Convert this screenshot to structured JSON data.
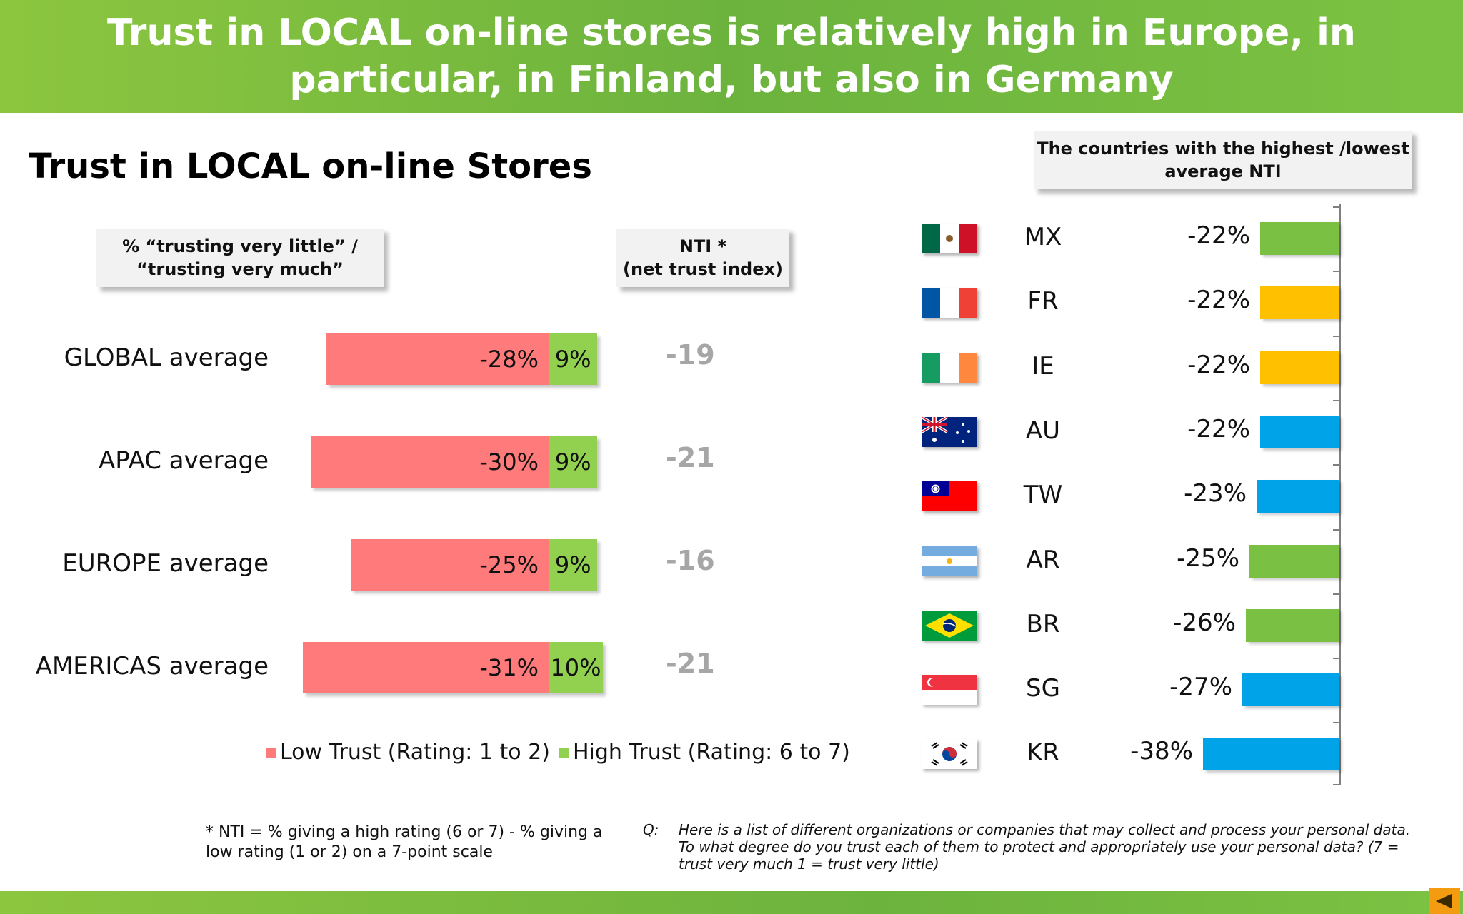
{
  "header": {
    "title": "Trust in LOCAL on-line stores is relatively high in Europe, in particular, in Finland, but also in Germany"
  },
  "section_title": "Trust in LOCAL on-line Stores",
  "left_box": {
    "line1": "% “trusting very  little” /",
    "line2": "“trusting very much”"
  },
  "nti_box": {
    "line1": "NTI *",
    "line2": "(net trust index)"
  },
  "right_box": {
    "line1": "The countries with the highest /lowest",
    "line2": "average NTI"
  },
  "colors": {
    "low": "#ff7a7a",
    "high": "#92d050",
    "green": "#7ac143",
    "yellow": "#ffc000",
    "blue": "#00a2e8"
  },
  "chart_data": [
    {
      "type": "bar",
      "orientation": "horizontal",
      "stacked": true,
      "categories": [
        "GLOBAL average",
        "APAC average",
        "EUROPE average",
        "AMERICAS average"
      ],
      "series": [
        {
          "name": "Low Trust (Rating: 1 to 2)",
          "values": [
            -28,
            -30,
            -25,
            -31
          ],
          "labels": [
            "-28%",
            "-30%",
            "-25%",
            "-31%"
          ]
        },
        {
          "name": "High Trust (Rating: 6 to 7)",
          "values": [
            9,
            9,
            9,
            10
          ],
          "labels": [
            "9%",
            "9%",
            "9%",
            "10%"
          ]
        }
      ],
      "nti": [
        "-19",
        "-21",
        "-16",
        "-21"
      ],
      "legend_position": "bottom"
    },
    {
      "type": "bar",
      "orientation": "horizontal",
      "categories": [
        "MX",
        "FR",
        "IE",
        "AU",
        "TW",
        "AR",
        "BR",
        "SG",
        "KR"
      ],
      "values": [
        -22,
        -22,
        -22,
        -22,
        -23,
        -25,
        -26,
        -27,
        -38
      ],
      "labels": [
        "-22%",
        "-22%",
        "-22%",
        "-22%",
        "-23%",
        "-25%",
        "-26%",
        "-27%",
        "-38%"
      ],
      "bar_colors": [
        "#7ac143",
        "#ffc000",
        "#ffc000",
        "#00a2e8",
        "#00a2e8",
        "#7ac143",
        "#7ac143",
        "#00a2e8",
        "#00a2e8"
      ],
      "flags": [
        "mexico-flag-icon",
        "france-flag-icon",
        "ireland-flag-icon",
        "australia-flag-icon",
        "taiwan-flag-icon",
        "argentina-flag-icon",
        "brazil-flag-icon",
        "singapore-flag-icon",
        "south-korea-flag-icon"
      ]
    }
  ],
  "footnote": "* NTI = % giving a high rating (6 or 7) - % giving a low rating (1 or 2) on a 7-point scale",
  "question": {
    "label": "Q:",
    "text": "Here is a list of different organizations or companies that may collect and process your personal data.  To what degree do you trust each of them to protect and appropriately use your personal data? (7 = trust very much 1 = trust very little)"
  }
}
